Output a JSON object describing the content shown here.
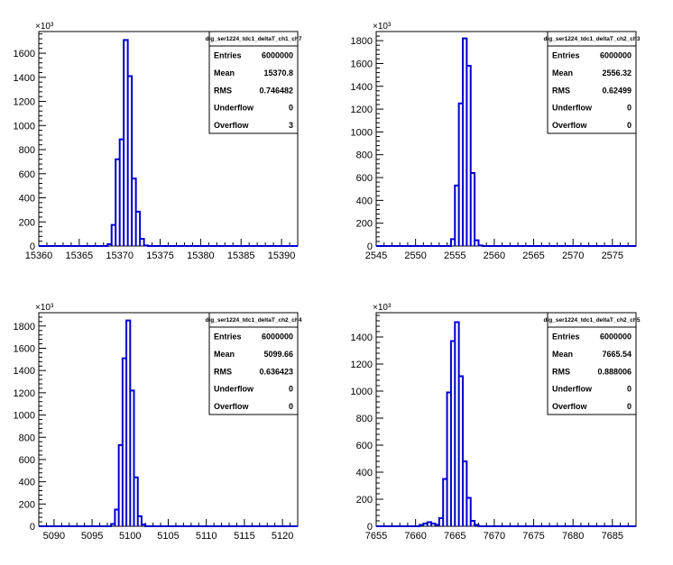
{
  "chart_data": [
    {
      "type": "histogram",
      "name": "dig_ser1224_tdc1_deltaT_ch1_ch7",
      "multiplier": "×10³",
      "xlim": [
        15360,
        15392
      ],
      "ylim": [
        0,
        1780
      ],
      "xticks": [
        15360,
        15365,
        15370,
        15375,
        15380,
        15385,
        15390
      ],
      "yticks": [
        0,
        200,
        400,
        600,
        800,
        1000,
        1200,
        1400,
        1600
      ],
      "bins": [
        [
          15368.5,
          15369.0,
          15
        ],
        [
          15369.0,
          15369.5,
          175
        ],
        [
          15369.5,
          15370.0,
          720
        ],
        [
          15370.0,
          15370.5,
          885
        ],
        [
          15370.5,
          15371.0,
          1710
        ],
        [
          15371.0,
          15371.5,
          1410
        ],
        [
          15371.5,
          15372.0,
          560
        ],
        [
          15372.0,
          15372.5,
          285
        ],
        [
          15372.5,
          15373.0,
          60
        ],
        [
          15373.0,
          15373.5,
          5
        ]
      ],
      "stats": {
        "Entries": "6000000",
        "Mean": "15370.8",
        "RMS": "0.746482",
        "Underflow": "0",
        "Overflow": "3"
      }
    },
    {
      "type": "histogram",
      "name": "dig_ser1224_tdc1_deltaT_ch2_ch3",
      "multiplier": "×10³",
      "xlim": [
        2545,
        2578
      ],
      "ylim": [
        0,
        1880
      ],
      "xticks": [
        2545,
        2550,
        2555,
        2560,
        2565,
        2570,
        2575
      ],
      "yticks": [
        0,
        200,
        400,
        600,
        800,
        1000,
        1200,
        1400,
        1600,
        1800
      ],
      "bins": [
        [
          2554.5,
          2555.0,
          60
        ],
        [
          2555.0,
          2555.5,
          530
        ],
        [
          2555.5,
          2556.0,
          1250
        ],
        [
          2556.0,
          2556.5,
          1820
        ],
        [
          2556.5,
          2557.0,
          1580
        ],
        [
          2557.0,
          2557.5,
          640
        ],
        [
          2557.5,
          2558.0,
          50
        ],
        [
          2558.0,
          2558.5,
          5
        ]
      ],
      "stats": {
        "Entries": "6000000",
        "Mean": "2556.32",
        "RMS": "0.62499",
        "Underflow": "0",
        "Overflow": "0"
      }
    },
    {
      "type": "histogram",
      "name": "dig_ser1224_tdc1_deltaT_ch2_ch4",
      "multiplier": "×10³",
      "xlim": [
        5088,
        5122
      ],
      "ylim": [
        0,
        1920
      ],
      "xticks": [
        5090,
        5095,
        5100,
        5105,
        5110,
        5115,
        5120
      ],
      "yticks": [
        0,
        200,
        400,
        600,
        800,
        1000,
        1200,
        1400,
        1600,
        1800
      ],
      "bins": [
        [
          5097.5,
          5098.0,
          20
        ],
        [
          5098.0,
          5098.5,
          150
        ],
        [
          5098.5,
          5099.0,
          730
        ],
        [
          5099.0,
          5099.5,
          1510
        ],
        [
          5099.5,
          5100.0,
          1850
        ],
        [
          5100.0,
          5100.5,
          1220
        ],
        [
          5100.5,
          5101.0,
          440
        ],
        [
          5101.0,
          5101.5,
          90
        ],
        [
          5101.5,
          5102.0,
          15
        ]
      ],
      "stats": {
        "Entries": "6000000",
        "Mean": "5099.66",
        "RMS": "0.636423",
        "Underflow": "0",
        "Overflow": "0"
      }
    },
    {
      "type": "histogram",
      "name": "dig_ser1224_tdc1_deltaT_ch2_ch5",
      "multiplier": "×10³",
      "xlim": [
        7655,
        7688
      ],
      "ylim": [
        0,
        1580
      ],
      "xticks": [
        7655,
        7660,
        7665,
        7670,
        7675,
        7680,
        7685
      ],
      "yticks": [
        0,
        200,
        400,
        600,
        800,
        1000,
        1200,
        1400
      ],
      "bins": [
        [
          7660.5,
          7661.0,
          10
        ],
        [
          7661.0,
          7661.5,
          20
        ],
        [
          7661.5,
          7662.0,
          30
        ],
        [
          7662.0,
          7662.5,
          20
        ],
        [
          7662.5,
          7663.0,
          10
        ],
        [
          7663.0,
          7663.5,
          60
        ],
        [
          7663.5,
          7664.0,
          350
        ],
        [
          7664.0,
          7664.5,
          990
        ],
        [
          7664.5,
          7665.0,
          1370
        ],
        [
          7665.0,
          7665.5,
          1510
        ],
        [
          7665.5,
          7666.0,
          1110
        ],
        [
          7666.0,
          7666.5,
          480
        ],
        [
          7666.5,
          7667.0,
          210
        ],
        [
          7667.0,
          7667.5,
          40
        ],
        [
          7667.5,
          7668.0,
          10
        ]
      ],
      "stats": {
        "Entries": "6000000",
        "Mean": "7665.54",
        "RMS": "0.888006",
        "Underflow": "0",
        "Overflow": "0"
      }
    }
  ],
  "colors": {
    "histogram_line": "#0000cc",
    "axis": "#000000",
    "background": "#ffffff"
  }
}
